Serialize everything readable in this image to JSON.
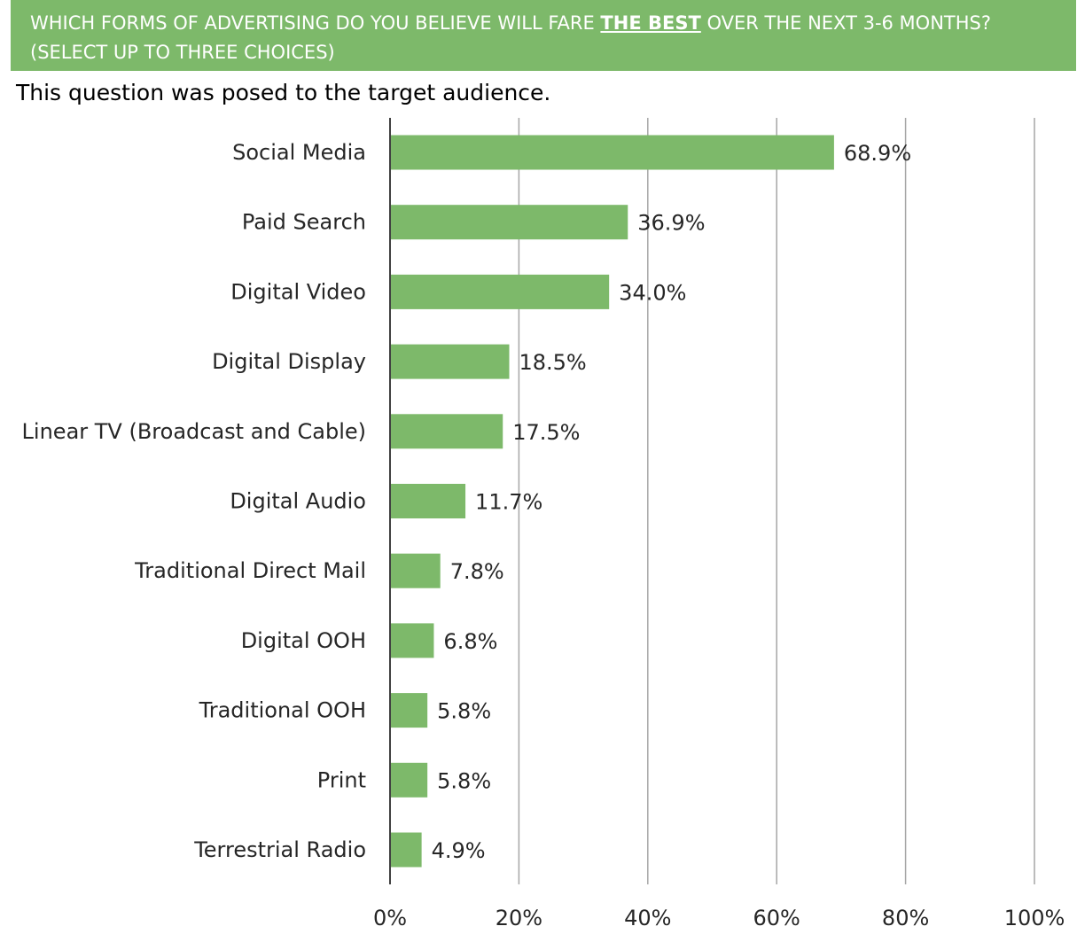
{
  "header": {
    "title_before": "WHICH FORMS OF ADVERTISING DO YOU BELIEVE WILL FARE ",
    "title_highlight": "THE BEST",
    "title_after": " OVER THE NEXT 3-6 MONTHS?",
    "title_line2": "(SELECT UP TO THREE CHOICES)"
  },
  "subtitle": "This question was posed to the target audience.",
  "colors": {
    "bar": "#7db96a",
    "header_bg": "#7db96a",
    "grid": "#a6a6a6",
    "axis": "#404040"
  },
  "chart_data": {
    "type": "bar",
    "orientation": "horizontal",
    "categories": [
      "Social Media",
      "Paid Search",
      "Digital Video",
      "Digital Display",
      "Linear TV (Broadcast and Cable)",
      "Digital Audio",
      "Traditional Direct Mail",
      "Digital OOH",
      "Traditional OOH",
      "Print",
      "Terrestrial Radio"
    ],
    "values": [
      68.9,
      36.9,
      34.0,
      18.5,
      17.5,
      11.7,
      7.8,
      6.8,
      5.8,
      5.8,
      4.9
    ],
    "value_labels": [
      "68.9%",
      "36.9%",
      "34.0%",
      "18.5%",
      "17.5%",
      "11.7%",
      "7.8%",
      "6.8%",
      "5.8%",
      "5.8%",
      "4.9%"
    ],
    "xlim": [
      0,
      100
    ],
    "xticks": [
      0,
      20,
      40,
      60,
      80,
      100
    ],
    "xtick_labels": [
      "0%",
      "20%",
      "40%",
      "60%",
      "80%",
      "100%"
    ],
    "grid": true,
    "legend": "none"
  }
}
